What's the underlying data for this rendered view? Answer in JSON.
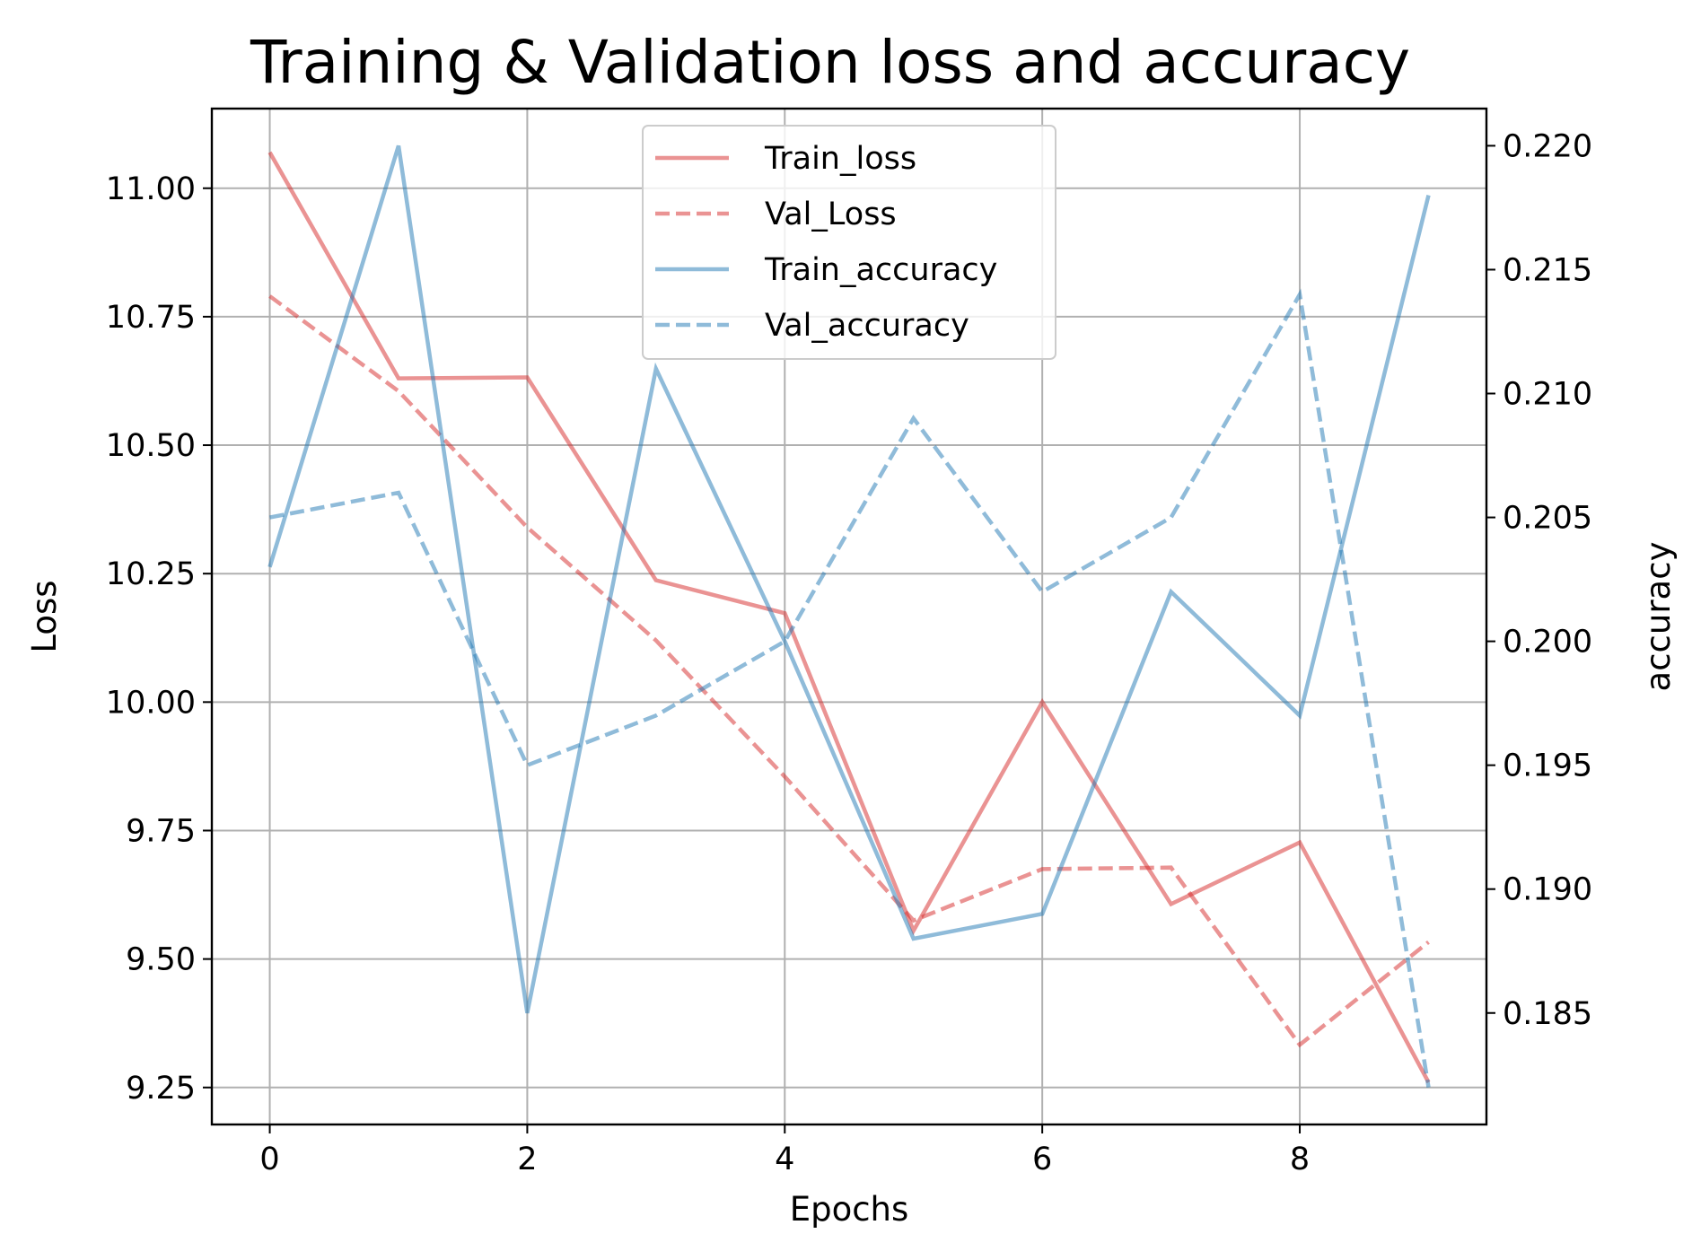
{
  "chart_data": {
    "type": "line",
    "title": "Training & Validation loss and accuracy",
    "xlabel": "Epochs",
    "ylabel": "Loss",
    "y2label": "accuracy",
    "x": [
      0,
      1,
      2,
      3,
      4,
      5,
      6,
      7,
      8,
      9
    ],
    "xlim": [
      -0.45,
      9.45
    ],
    "ylim": [
      9.178,
      11.155
    ],
    "y2lim": [
      0.1805,
      0.2215
    ],
    "xticks": [
      0,
      2,
      4,
      6,
      8
    ],
    "xtick_labels": [
      "0",
      "2",
      "4",
      "6",
      "8"
    ],
    "yticks": [
      9.25,
      9.5,
      9.75,
      10.0,
      10.25,
      10.5,
      10.75,
      11.0
    ],
    "ytick_labels": [
      "9.25",
      "9.50",
      "9.75",
      "10.00",
      "10.25",
      "10.50",
      "10.75",
      "11.00"
    ],
    "y2ticks": [
      0.185,
      0.19,
      0.195,
      0.2,
      0.205,
      0.21,
      0.215,
      0.22
    ],
    "y2tick_labels": [
      "0.185",
      "0.190",
      "0.195",
      "0.200",
      "0.205",
      "0.210",
      "0.215",
      "0.220"
    ],
    "grid": true,
    "legend_position": "top-center",
    "series": [
      {
        "name": "Train_loss",
        "axis": "left",
        "style": "solid",
        "color": "#d62728",
        "values": [
          11.07,
          10.63,
          10.632,
          10.237,
          10.173,
          9.555,
          10.0,
          9.607,
          9.727,
          9.26
        ]
      },
      {
        "name": "Val_Loss",
        "axis": "left",
        "style": "dashed",
        "color": "#d62728",
        "values": [
          10.79,
          10.605,
          10.34,
          10.12,
          9.855,
          9.575,
          9.675,
          9.678,
          9.333,
          9.533
        ]
      },
      {
        "name": "Train_accuracy",
        "axis": "right",
        "style": "solid",
        "color": "#1f77b4",
        "values": [
          0.203,
          0.22,
          0.185,
          0.211,
          0.2,
          0.188,
          0.189,
          0.202,
          0.197,
          0.218
        ]
      },
      {
        "name": "Val_accuracy",
        "axis": "right",
        "style": "dashed",
        "color": "#1f77b4",
        "values": [
          0.205,
          0.206,
          0.195,
          0.197,
          0.2,
          0.209,
          0.202,
          0.205,
          0.214,
          0.182
        ]
      }
    ]
  }
}
